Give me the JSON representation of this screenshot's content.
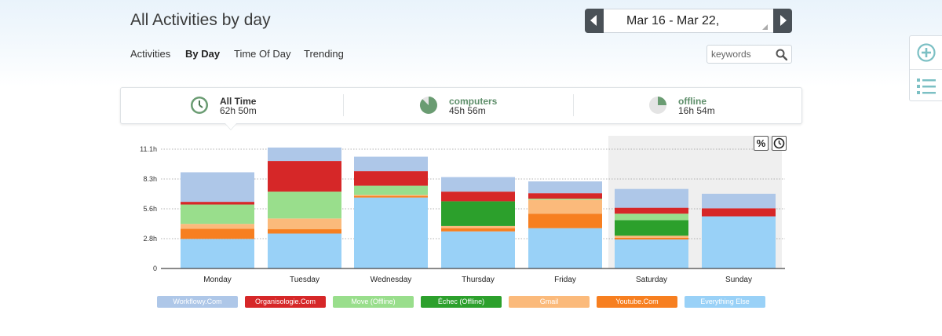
{
  "header": {
    "title": "All Activities by day",
    "date_range": "Mar 16 - Mar 22,"
  },
  "nav": {
    "tabs": [
      {
        "label": "Activities",
        "active": false
      },
      {
        "label": "By Day",
        "active": true
      },
      {
        "label": "Time Of Day",
        "active": false
      },
      {
        "label": "Trending",
        "active": false
      }
    ]
  },
  "search": {
    "placeholder": "keywords"
  },
  "side_panel": {
    "icons": [
      "plus-circle-icon",
      "list-icon"
    ]
  },
  "summary": [
    {
      "name": "All Time",
      "value": "62h 50m",
      "icon": "clock-icon",
      "name_color": "#222222"
    },
    {
      "name": "computers",
      "value": "45h 56m",
      "icon": "pie-icon",
      "name_color": "#5e8e6a"
    },
    {
      "name": "offline",
      "value": "16h 54m",
      "icon": "pie-icon",
      "name_color": "#5e8e6a"
    }
  ],
  "chart_controls": {
    "percent_label": "%",
    "clock_icon": "clock-icon"
  },
  "chart_data": {
    "type": "bar",
    "stacked": true,
    "categories": [
      "Monday",
      "Tuesday",
      "Wednesday",
      "Thursday",
      "Friday",
      "Saturday",
      "Sunday"
    ],
    "y_ticks": [
      "0",
      "2.8h",
      "5.6h",
      "8.3h",
      "11.1h"
    ],
    "ylim": [
      0,
      11.1
    ],
    "grid": true,
    "highlighted_categories": [
      "Saturday",
      "Sunday"
    ],
    "series": [
      {
        "name": "Everything Else",
        "color": "#99d1f7",
        "values": [
          2.75,
          3.25,
          6.6,
          3.45,
          3.75,
          2.7,
          4.85
        ]
      },
      {
        "name": "Youtube.Com",
        "color": "#f77f20",
        "values": [
          0.95,
          0.4,
          0.15,
          0.3,
          1.35,
          0.15,
          0.0
        ]
      },
      {
        "name": "Gmail",
        "color": "#fbba7b",
        "values": [
          0.45,
          1.0,
          0.1,
          0.2,
          1.3,
          0.2,
          0.0
        ]
      },
      {
        "name": "Échec (Offline)",
        "color": "#2ca02c",
        "values": [
          0.0,
          0.0,
          0.0,
          2.3,
          0.0,
          1.45,
          0.0
        ]
      },
      {
        "name": "Move (Offline)",
        "color": "#99de8c",
        "values": [
          1.8,
          2.5,
          0.85,
          0.0,
          0.1,
          0.6,
          0.0
        ]
      },
      {
        "name": "Organisologie.Com",
        "color": "#d62728",
        "values": [
          0.25,
          2.85,
          1.35,
          0.9,
          0.5,
          0.55,
          0.75
        ]
      },
      {
        "name": "Workflowy.Com",
        "color": "#aec7e8",
        "values": [
          2.75,
          1.25,
          1.35,
          1.35,
          1.1,
          1.75,
          1.35
        ]
      }
    ]
  },
  "legend": [
    {
      "name": "Workflowy.Com",
      "color": "#aec7e8"
    },
    {
      "name": "Organisologie.Com",
      "color": "#d62728"
    },
    {
      "name": "Move (Offline)",
      "color": "#99de8c"
    },
    {
      "name": "Échec (Offline)",
      "color": "#2ca02c"
    },
    {
      "name": "Gmail",
      "color": "#fbba7b"
    },
    {
      "name": "Youtube.Com",
      "color": "#f77f20"
    },
    {
      "name": "Everything Else",
      "color": "#99d1f7"
    }
  ]
}
